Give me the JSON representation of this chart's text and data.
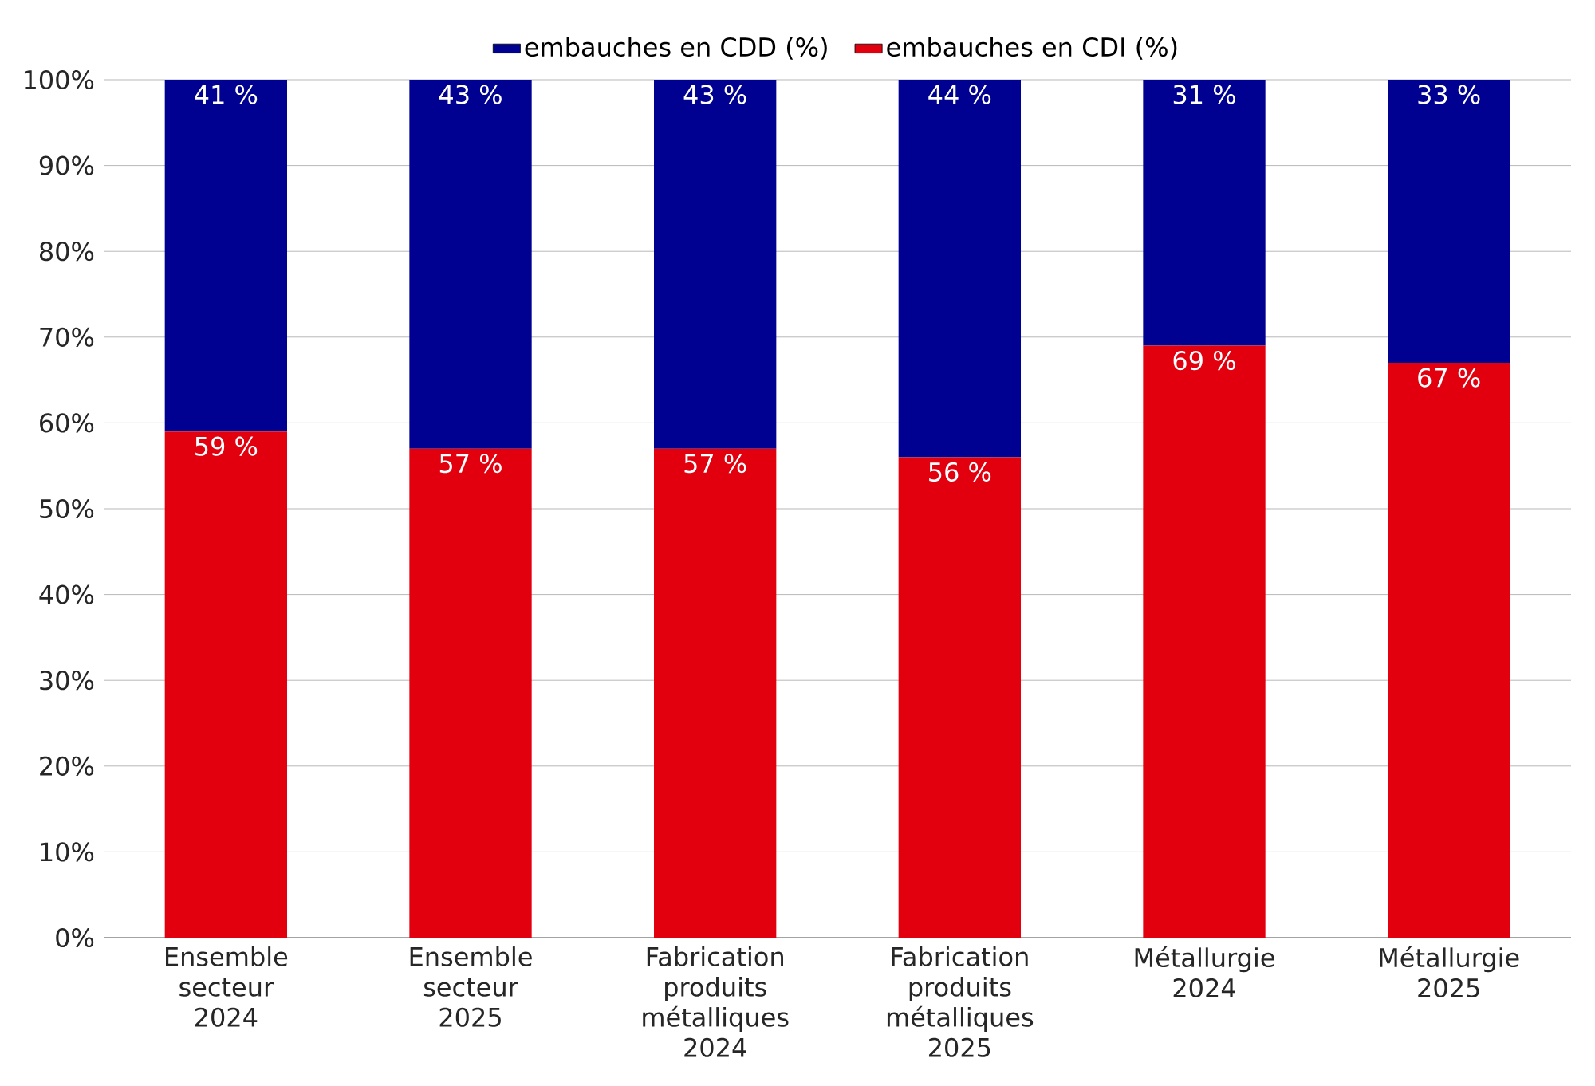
{
  "chart_data": {
    "type": "bar",
    "stacked": true,
    "categories": [
      "Ensemble secteur 2024",
      "Ensemble secteur 2025",
      "Fabrication produits métalliques 2024",
      "Fabrication produits métalliques 2025",
      "Métallurgie 2024",
      "Métallurgie 2025"
    ],
    "series": [
      {
        "name": "embauches en CDI (%)",
        "color": "#e2000f",
        "values": [
          59,
          57,
          57,
          56,
          69,
          67
        ],
        "value_labels": [
          "59 %",
          "57 %",
          "57 %",
          "56 %",
          "69 %",
          "67 %"
        ]
      },
      {
        "name": "embauches en CDD (%)",
        "color": "#000091",
        "values": [
          41,
          43,
          43,
          44,
          31,
          33
        ],
        "value_labels": [
          "41 %",
          "43 %",
          "43 %",
          "44 %",
          "31 %",
          "33 %"
        ]
      }
    ],
    "ylim": [
      0,
      100
    ],
    "yticks": [
      {
        "value": 0,
        "label": "0%"
      },
      {
        "value": 10,
        "label": "10%"
      },
      {
        "value": 20,
        "label": "20%"
      },
      {
        "value": 30,
        "label": "30%"
      },
      {
        "value": 40,
        "label": "40%"
      },
      {
        "value": 50,
        "label": "50%"
      },
      {
        "value": 60,
        "label": "60%"
      },
      {
        "value": 70,
        "label": "70%"
      },
      {
        "value": 80,
        "label": "80%"
      },
      {
        "value": 90,
        "label": "90%"
      },
      {
        "value": 100,
        "label": "100%"
      }
    ],
    "grid": "y",
    "legend": "top"
  }
}
